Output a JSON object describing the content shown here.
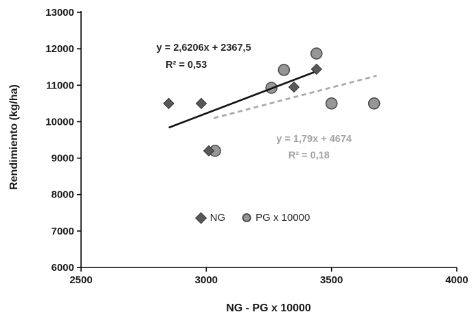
{
  "chart_data": {
    "type": "scatter",
    "title": "",
    "xlabel": "NG - PG x 10000",
    "ylabel": "Rendimiento (kg/ha)",
    "xlim": [
      2500,
      4000
    ],
    "ylim": [
      6000,
      13000
    ],
    "x_ticks": [
      2500,
      3000,
      3500,
      4000
    ],
    "y_ticks": [
      6000,
      7000,
      8000,
      9000,
      10000,
      11000,
      12000,
      13000
    ],
    "grid": false,
    "legend_position": "inside-bottom-center",
    "series": [
      {
        "name": "NG",
        "marker": "diamond",
        "fill": "#595959",
        "stroke": "#333333",
        "points": [
          [
            2850,
            10500
          ],
          [
            2980,
            10500
          ],
          [
            3010,
            9200
          ],
          [
            3350,
            10950
          ],
          [
            3440,
            11440
          ]
        ]
      },
      {
        "name": "PG x 10000",
        "marker": "circle",
        "fill": "#979797",
        "stroke": "#4d4d4d",
        "points": [
          [
            3035,
            9200
          ],
          [
            3260,
            10930
          ],
          [
            3310,
            11420
          ],
          [
            3440,
            11870
          ],
          [
            3500,
            10500
          ],
          [
            3670,
            10500
          ]
        ]
      }
    ],
    "trendlines": [
      {
        "series": "NG",
        "equation": "y = 2,6206x + 2367,5",
        "r2": "R² = 0,53",
        "slope": 2.6206,
        "intercept": 2367.5,
        "x_range": [
          2850,
          3445
        ],
        "style": "solid",
        "color": "#141414"
      },
      {
        "series": "PG x 10000",
        "equation": "y = 1,79x + 4674",
        "r2": "R² = 0,18",
        "slope": 1.79,
        "intercept": 4674,
        "x_range": [
          3030,
          3680
        ],
        "style": "dashed",
        "color": "#a8a8a8"
      }
    ],
    "annotations": [
      {
        "text": "y = 2,6206x + 2367,5",
        "x": 2990,
        "y": 11950,
        "color": "#262626"
      },
      {
        "text": "R² = 0,53",
        "x": 2920,
        "y": 11480,
        "color": "#262626"
      },
      {
        "text": "y = 1,79x + 4674",
        "x": 3430,
        "y": 9440,
        "color": "#a3a3a3"
      },
      {
        "text": "R² = 0,18",
        "x": 3410,
        "y": 8990,
        "color": "#a3a3a3"
      }
    ]
  }
}
